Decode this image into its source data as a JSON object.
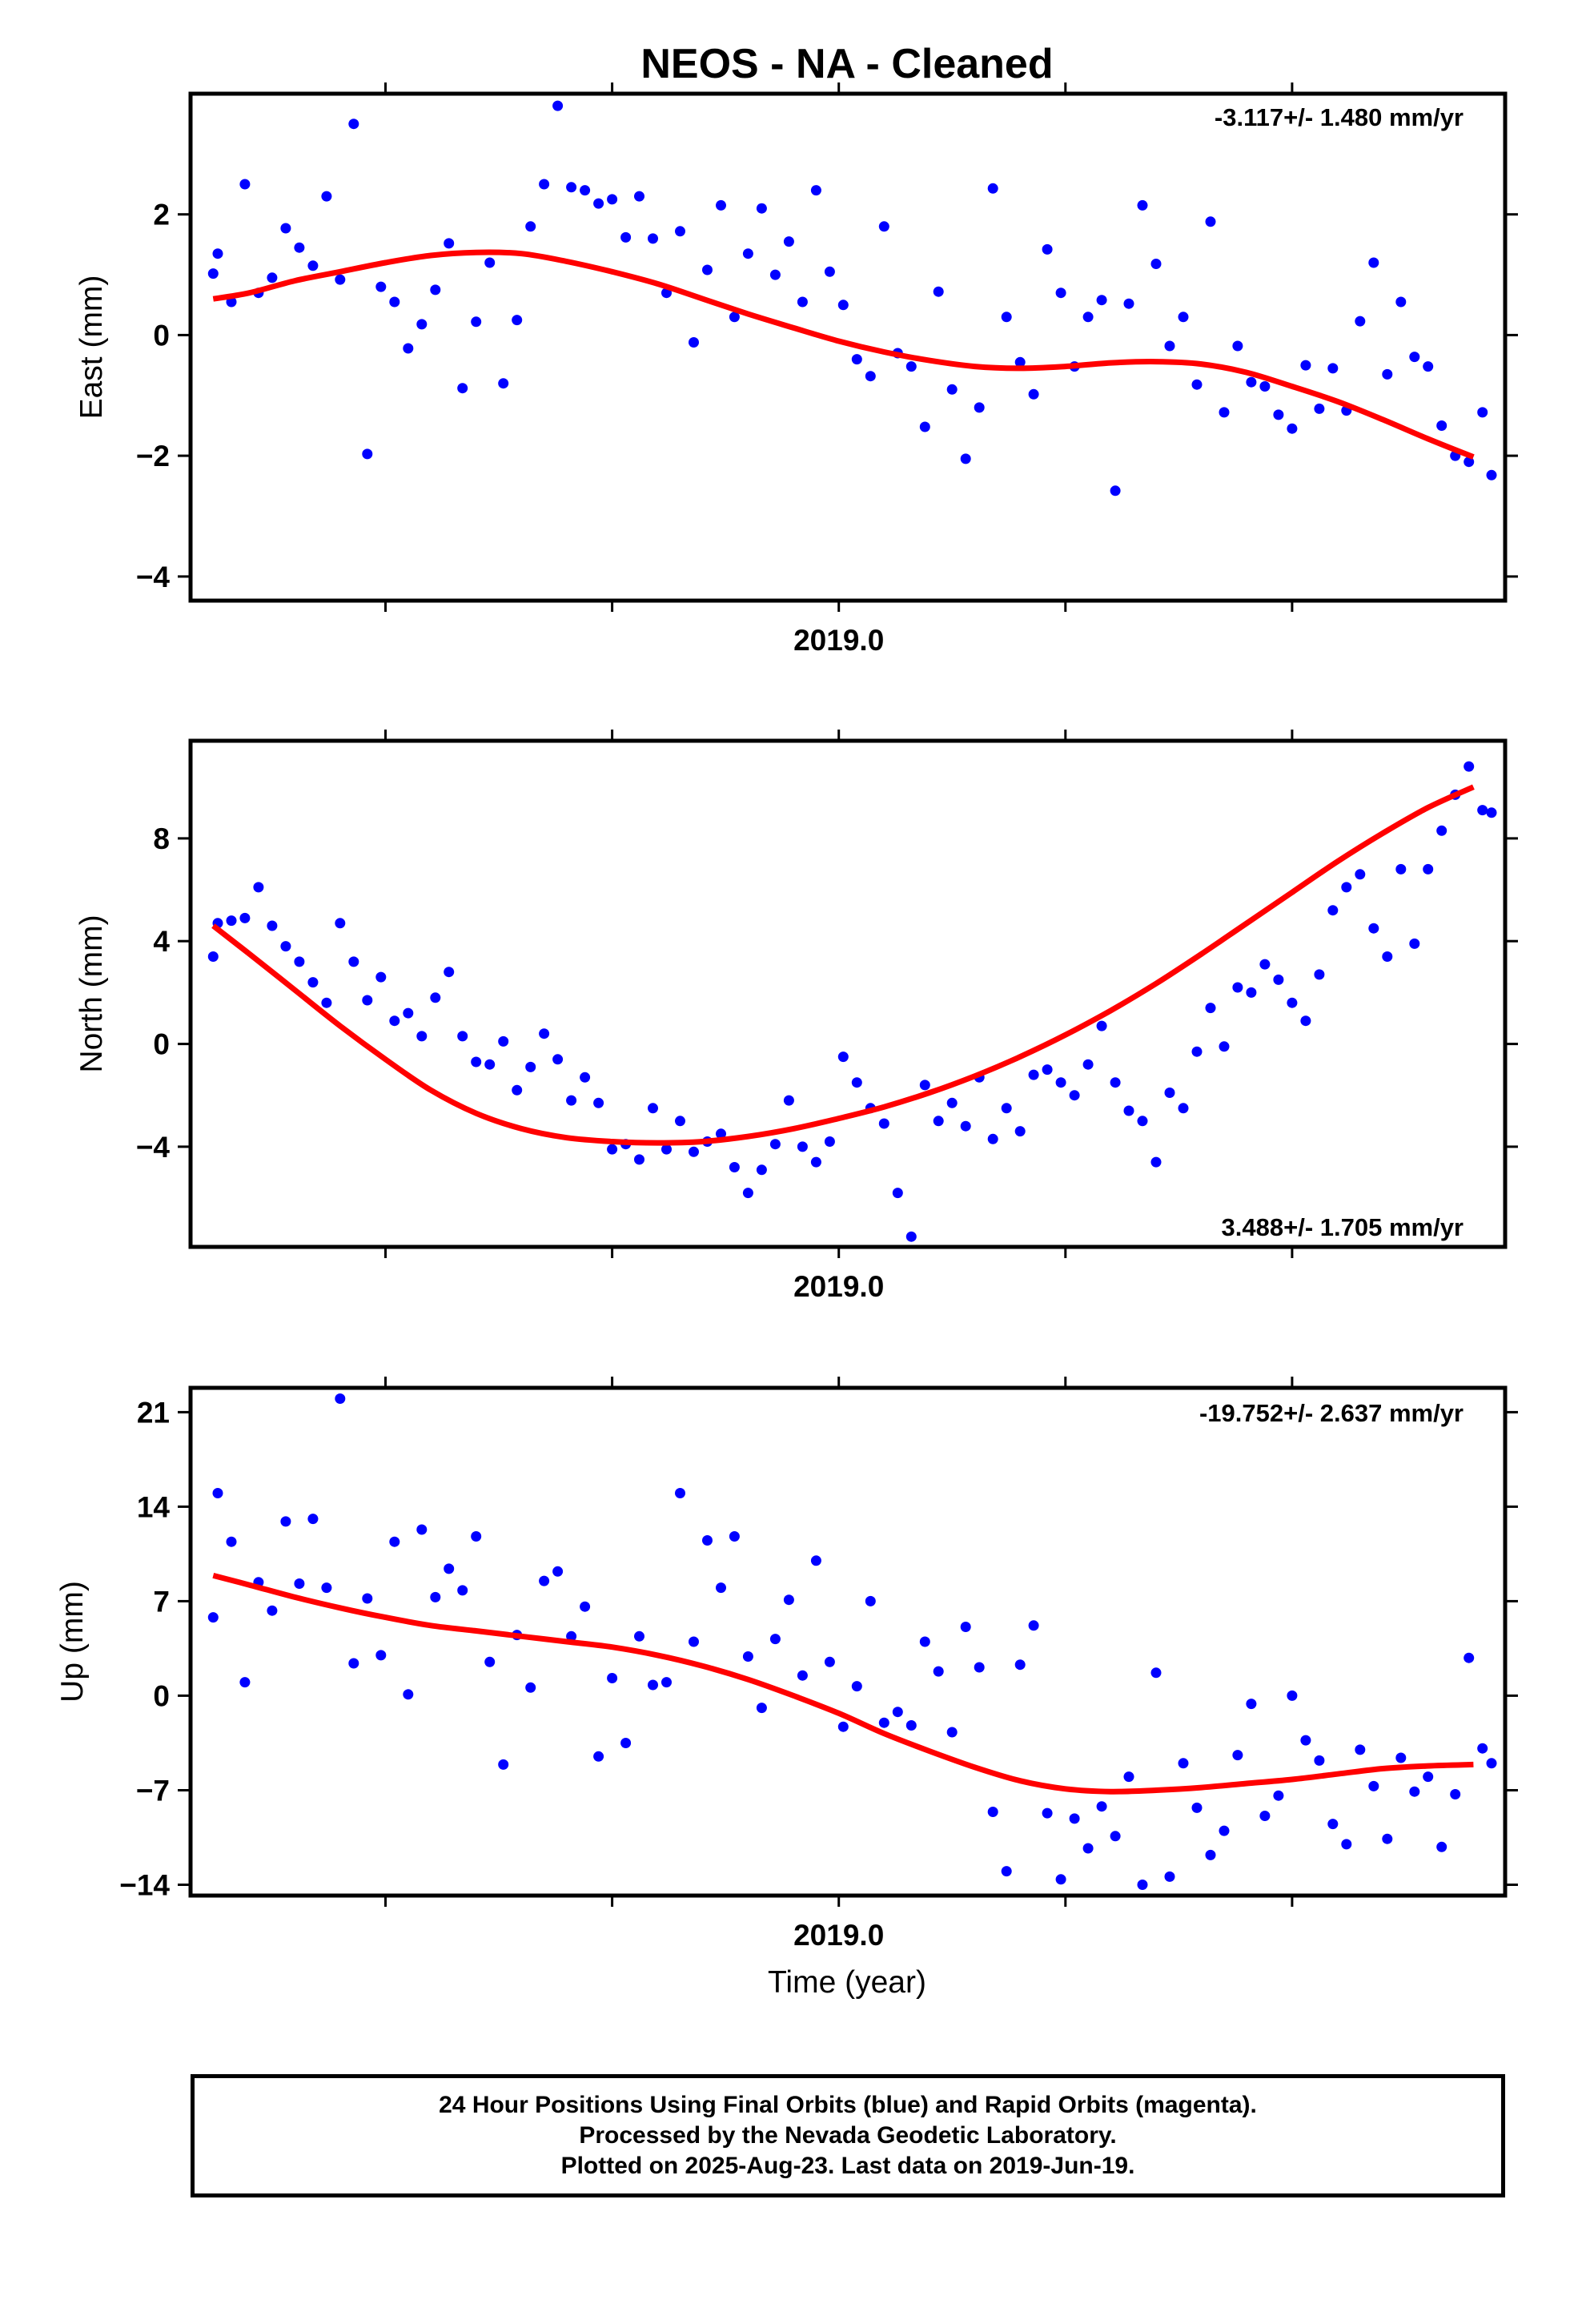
{
  "title": "NEOS  - NA - Cleaned",
  "x_axis_title": "Time (year)",
  "footer": {
    "line1": "24 Hour Positions Using Final Orbits (blue) and Rapid Orbits (magenta).",
    "line2": "Processed by the Nevada Geodetic Laboratory.",
    "line3": "Plotted on 2025-Aug-23. Last data on 2019-Jun-19."
  },
  "colors": {
    "points": "#0000ff",
    "fit": "#ff0000",
    "axes": "#000000"
  },
  "chart_data": [
    {
      "type": "scatter",
      "ylabel": "East (mm)",
      "rate_label": "-3.117+/- 1.480 mm/yr",
      "xlim": [
        2018.285,
        2019.735
      ],
      "ylim": [
        -4.4,
        4.0
      ],
      "x_tick_label": "2019.0",
      "x_tick_label_value": 2019.0,
      "x_ticks": [
        2018.5,
        2018.75,
        2019.0,
        2019.25,
        2019.5
      ],
      "y_ticks": [
        -4,
        -2,
        0,
        2
      ],
      "y_tick_labels": [
        "−4",
        "−2",
        "0",
        "2"
      ],
      "fit": {
        "x": [
          2018.31,
          2018.35,
          2018.4,
          2018.45,
          2018.5,
          2018.55,
          2018.6,
          2018.65,
          2018.7,
          2018.75,
          2018.8,
          2018.85,
          2018.9,
          2018.95,
          2019.0,
          2019.05,
          2019.1,
          2019.15,
          2019.2,
          2019.25,
          2019.3,
          2019.35,
          2019.4,
          2019.45,
          2019.5,
          2019.55,
          2019.6,
          2019.65,
          2019.7
        ],
        "y": [
          0.6,
          0.7,
          0.9,
          1.05,
          1.2,
          1.32,
          1.37,
          1.35,
          1.22,
          1.05,
          0.85,
          0.6,
          0.35,
          0.12,
          -0.1,
          -0.28,
          -0.42,
          -0.52,
          -0.55,
          -0.52,
          -0.46,
          -0.44,
          -0.48,
          -0.62,
          -0.85,
          -1.1,
          -1.4,
          -1.72,
          -2.02
        ]
      },
      "series": [
        {
          "name": "Final Orbits",
          "x": [
            2018.31,
            2018.315,
            2018.33,
            2018.345,
            2018.36,
            2018.375,
            2018.39,
            2018.405,
            2018.42,
            2018.435,
            2018.45,
            2018.465,
            2018.48,
            2018.495,
            2018.51,
            2018.525,
            2018.54,
            2018.555,
            2018.57,
            2018.585,
            2018.6,
            2018.615,
            2018.63,
            2018.645,
            2018.66,
            2018.675,
            2018.69,
            2018.705,
            2018.72,
            2018.735,
            2018.75,
            2018.765,
            2018.78,
            2018.795,
            2018.81,
            2018.825,
            2018.84,
            2018.855,
            2018.87,
            2018.885,
            2018.9,
            2018.915,
            2018.93,
            2018.945,
            2018.96,
            2018.975,
            2018.99,
            2019.005,
            2019.02,
            2019.035,
            2019.05,
            2019.065,
            2019.08,
            2019.095,
            2019.11,
            2019.125,
            2019.14,
            2019.155,
            2019.17,
            2019.185,
            2019.2,
            2019.215,
            2019.23,
            2019.245,
            2019.26,
            2019.275,
            2019.29,
            2019.305,
            2019.32,
            2019.335,
            2019.35,
            2019.365,
            2019.38,
            2019.395,
            2019.41,
            2019.425,
            2019.44,
            2019.455,
            2019.47,
            2019.485,
            2019.5,
            2019.515,
            2019.53,
            2019.545,
            2019.56,
            2019.575,
            2019.59,
            2019.605,
            2019.62,
            2019.635,
            2019.65,
            2019.665,
            2019.68,
            2019.695,
            2019.71,
            2019.72
          ],
          "y": [
            1.02,
            1.35,
            0.55,
            2.5,
            0.7,
            0.95,
            1.77,
            1.45,
            1.15,
            2.3,
            0.92,
            3.5,
            -1.97,
            0.8,
            0.55,
            -0.22,
            0.18,
            0.75,
            1.52,
            -0.88,
            0.22,
            1.2,
            -0.8,
            0.25,
            1.8,
            2.5,
            3.8,
            2.45,
            2.4,
            2.18,
            2.25,
            1.62,
            2.3,
            1.6,
            0.7,
            1.72,
            -0.12,
            1.08,
            2.15,
            0.3,
            1.35,
            2.1,
            1.0,
            1.55,
            0.55,
            2.4,
            1.05,
            0.5,
            -0.4,
            -0.68,
            1.8,
            -0.3,
            -0.52,
            -1.52,
            0.72,
            -0.9,
            -2.05,
            -1.2,
            2.43,
            0.3,
            -0.45,
            -0.98,
            1.42,
            0.7,
            -0.52,
            0.3,
            0.58,
            -2.58,
            0.52,
            2.15,
            1.18,
            -0.18,
            0.3,
            -0.82,
            1.88,
            -1.28,
            -0.18,
            -0.78,
            -0.85,
            -1.32,
            -1.55,
            -0.5,
            -1.22,
            -0.55,
            -1.25,
            0.23,
            1.2,
            -0.65,
            0.55,
            -0.36,
            -0.52,
            -1.5,
            -2.0,
            -2.1,
            -1.28,
            -2.32
          ],
          "color": "#0000ff"
        }
      ]
    },
    {
      "type": "scatter",
      "ylabel": "North (mm)",
      "rate_label": "3.488+/- 1.705 mm/yr",
      "xlim": [
        2018.285,
        2019.735
      ],
      "ylim": [
        -7.9,
        11.8
      ],
      "x_tick_label": "2019.0",
      "x_tick_label_value": 2019.0,
      "x_ticks": [
        2018.5,
        2018.75,
        2019.0,
        2019.25,
        2019.5
      ],
      "y_ticks": [
        -4,
        0,
        4,
        8
      ],
      "y_tick_labels": [
        "−4",
        "0",
        "4",
        "8"
      ],
      "fit": {
        "x": [
          2018.31,
          2018.35,
          2018.4,
          2018.45,
          2018.5,
          2018.55,
          2018.6,
          2018.65,
          2018.7,
          2018.75,
          2018.8,
          2018.85,
          2018.9,
          2018.95,
          2019.0,
          2019.05,
          2019.1,
          2019.15,
          2019.2,
          2019.25,
          2019.3,
          2019.35,
          2019.4,
          2019.45,
          2019.5,
          2019.55,
          2019.6,
          2019.65,
          2019.7
        ],
        "y": [
          4.6,
          3.5,
          2.1,
          0.7,
          -0.6,
          -1.8,
          -2.7,
          -3.3,
          -3.65,
          -3.8,
          -3.85,
          -3.8,
          -3.6,
          -3.3,
          -2.9,
          -2.45,
          -1.9,
          -1.25,
          -0.5,
          0.35,
          1.3,
          2.35,
          3.5,
          4.7,
          5.9,
          7.1,
          8.2,
          9.2,
          10.0
        ]
      },
      "series": [
        {
          "name": "Final Orbits",
          "x": [
            2018.31,
            2018.315,
            2018.33,
            2018.345,
            2018.36,
            2018.375,
            2018.39,
            2018.405,
            2018.42,
            2018.435,
            2018.45,
            2018.465,
            2018.48,
            2018.495,
            2018.51,
            2018.525,
            2018.54,
            2018.555,
            2018.57,
            2018.585,
            2018.6,
            2018.615,
            2018.63,
            2018.645,
            2018.66,
            2018.675,
            2018.69,
            2018.705,
            2018.72,
            2018.735,
            2018.75,
            2018.765,
            2018.78,
            2018.795,
            2018.81,
            2018.825,
            2018.84,
            2018.855,
            2018.87,
            2018.885,
            2018.9,
            2018.915,
            2018.93,
            2018.945,
            2018.96,
            2018.975,
            2018.99,
            2019.005,
            2019.02,
            2019.035,
            2019.05,
            2019.065,
            2019.08,
            2019.095,
            2019.11,
            2019.125,
            2019.14,
            2019.155,
            2019.17,
            2019.185,
            2019.2,
            2019.215,
            2019.23,
            2019.245,
            2019.26,
            2019.275,
            2019.29,
            2019.305,
            2019.32,
            2019.335,
            2019.35,
            2019.365,
            2019.38,
            2019.395,
            2019.41,
            2019.425,
            2019.44,
            2019.455,
            2019.47,
            2019.485,
            2019.5,
            2019.515,
            2019.53,
            2019.545,
            2019.56,
            2019.575,
            2019.59,
            2019.605,
            2019.62,
            2019.635,
            2019.65,
            2019.665,
            2019.68,
            2019.695,
            2019.71,
            2019.72
          ],
          "y": [
            3.4,
            4.7,
            4.8,
            4.9,
            6.1,
            4.6,
            3.8,
            3.2,
            2.4,
            1.6,
            4.7,
            3.2,
            1.7,
            2.6,
            0.9,
            1.2,
            0.3,
            1.8,
            2.8,
            0.3,
            -0.7,
            -0.8,
            0.1,
            -1.8,
            -0.9,
            0.4,
            -0.6,
            -2.2,
            -1.3,
            -2.3,
            -4.1,
            -3.9,
            -4.5,
            -2.5,
            -4.1,
            -3.0,
            -4.2,
            -3.8,
            -3.5,
            -4.8,
            -5.8,
            -4.9,
            -3.9,
            -2.2,
            -4.0,
            -4.6,
            -3.8,
            -0.5,
            -1.5,
            -2.5,
            -3.1,
            -5.8,
            -7.5,
            -1.6,
            -3.0,
            -2.3,
            -3.2,
            -1.3,
            -3.7,
            -2.5,
            -3.4,
            -1.2,
            -1.0,
            -1.5,
            -2.0,
            -0.8,
            0.7,
            -1.5,
            -2.6,
            -3.0,
            -4.6,
            -1.9,
            -2.5,
            -0.3,
            1.4,
            -0.1,
            2.2,
            2.0,
            3.1,
            2.5,
            1.6,
            0.9,
            2.7,
            5.2,
            6.1,
            6.6,
            4.5,
            3.4,
            6.8,
            3.9,
            6.8,
            8.3,
            9.7,
            10.8,
            9.1,
            9.0
          ],
          "color": "#0000ff"
        }
      ]
    },
    {
      "type": "scatter",
      "ylabel": "Up (mm)",
      "rate_label": "-19.752+/- 2.637 mm/yr",
      "xlim": [
        2018.285,
        2019.735
      ],
      "ylim": [
        -14.8,
        22.8
      ],
      "x_tick_label": "2019.0",
      "x_tick_label_value": 2019.0,
      "x_ticks": [
        2018.5,
        2018.75,
        2019.0,
        2019.25,
        2019.5
      ],
      "y_ticks": [
        -14,
        -7,
        0,
        7,
        14,
        21
      ],
      "y_tick_labels": [
        "−14",
        "−7",
        "0",
        "7",
        "14",
        "21"
      ],
      "fit": {
        "x": [
          2018.31,
          2018.35,
          2018.4,
          2018.45,
          2018.5,
          2018.55,
          2018.6,
          2018.65,
          2018.7,
          2018.75,
          2018.8,
          2018.85,
          2018.9,
          2018.95,
          2019.0,
          2019.05,
          2019.1,
          2019.15,
          2019.2,
          2019.25,
          2019.3,
          2019.35,
          2019.4,
          2019.45,
          2019.5,
          2019.55,
          2019.6,
          2019.65,
          2019.7
        ],
        "y": [
          8.9,
          8.2,
          7.3,
          6.5,
          5.8,
          5.2,
          4.8,
          4.4,
          4.0,
          3.6,
          3.0,
          2.2,
          1.2,
          0.0,
          -1.3,
          -2.8,
          -4.1,
          -5.3,
          -6.3,
          -6.9,
          -7.1,
          -7.0,
          -6.8,
          -6.5,
          -6.2,
          -5.8,
          -5.4,
          -5.2,
          -5.1
        ]
      },
      "series": [
        {
          "name": "Final Orbits",
          "x": [
            2018.31,
            2018.315,
            2018.33,
            2018.345,
            2018.36,
            2018.375,
            2018.39,
            2018.405,
            2018.42,
            2018.435,
            2018.45,
            2018.465,
            2018.48,
            2018.495,
            2018.51,
            2018.525,
            2018.54,
            2018.555,
            2018.57,
            2018.585,
            2018.6,
            2018.615,
            2018.63,
            2018.645,
            2018.66,
            2018.675,
            2018.69,
            2018.705,
            2018.72,
            2018.735,
            2018.75,
            2018.765,
            2018.78,
            2018.795,
            2018.81,
            2018.825,
            2018.84,
            2018.855,
            2018.87,
            2018.885,
            2018.9,
            2018.915,
            2018.93,
            2018.945,
            2018.96,
            2018.975,
            2018.99,
            2019.005,
            2019.02,
            2019.035,
            2019.05,
            2019.065,
            2019.08,
            2019.095,
            2019.11,
            2019.125,
            2019.14,
            2019.155,
            2019.17,
            2019.185,
            2019.2,
            2019.215,
            2019.23,
            2019.245,
            2019.26,
            2019.275,
            2019.29,
            2019.305,
            2019.32,
            2019.335,
            2019.35,
            2019.365,
            2019.38,
            2019.395,
            2019.41,
            2019.425,
            2019.44,
            2019.455,
            2019.47,
            2019.485,
            2019.5,
            2019.515,
            2019.53,
            2019.545,
            2019.56,
            2019.575,
            2019.59,
            2019.605,
            2019.62,
            2019.635,
            2019.65,
            2019.665,
            2019.68,
            2019.695,
            2019.71,
            2019.72
          ],
          "y": [
            5.8,
            15.0,
            11.4,
            1.0,
            8.4,
            6.3,
            12.9,
            8.3,
            13.1,
            8.0,
            22.0,
            2.4,
            7.2,
            3.0,
            11.4,
            0.1,
            12.3,
            7.3,
            9.4,
            7.8,
            11.8,
            2.5,
            -5.1,
            4.5,
            0.6,
            8.5,
            9.2,
            4.4,
            6.6,
            -4.5,
            1.3,
            -3.5,
            4.4,
            0.8,
            1.0,
            15.0,
            4.0,
            11.5,
            8.0,
            11.8,
            2.9,
            -0.9,
            4.2,
            7.1,
            1.5,
            10.0,
            2.5,
            -2.3,
            0.7,
            7.0,
            -2.0,
            -1.2,
            -2.2,
            4.0,
            1.8,
            -2.7,
            5.1,
            2.1,
            -8.6,
            -13.0,
            2.3,
            5.2,
            -8.7,
            -13.6,
            -9.1,
            -11.3,
            -8.2,
            -10.4,
            -6.0,
            -14.0,
            1.7,
            -13.4,
            -5.0,
            -8.3,
            -11.8,
            -10.0,
            -4.4,
            -0.6,
            -8.9,
            -7.4,
            0.0,
            -3.3,
            -4.8,
            -9.5,
            -11.0,
            -4.0,
            -6.7,
            -10.6,
            -4.6,
            -7.1,
            -6.0,
            -11.2,
            -7.3,
            2.8,
            -3.9,
            -5.0
          ],
          "color": "#0000ff"
        }
      ]
    }
  ]
}
